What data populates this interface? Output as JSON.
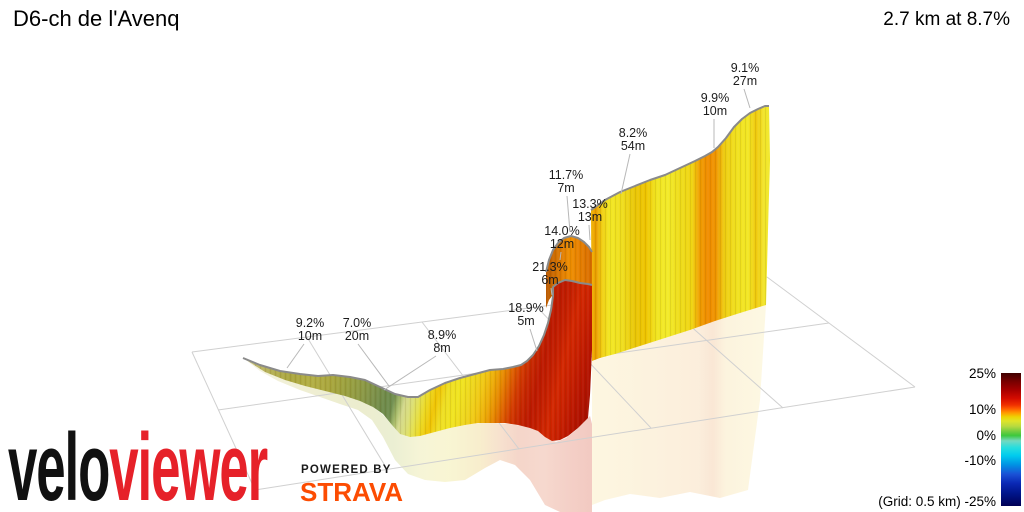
{
  "header": {
    "title": "D6-ch de l'Avenq",
    "summary": "2.7 km at 8.7%"
  },
  "chart_data": {
    "type": "3d-elevation-profile",
    "title": "D6-ch de l'Avenq",
    "climb_length_km": 2.7,
    "avg_gradient_pct": 8.7,
    "summary": "2.7 km at 8.7%",
    "segment_labels": [
      {
        "gradient": "9.2%",
        "gain": "10m"
      },
      {
        "gradient": "7.0%",
        "gain": "20m"
      },
      {
        "gradient": "8.9%",
        "gain": "8m"
      },
      {
        "gradient": "18.9%",
        "gain": "5m"
      },
      {
        "gradient": "21.3%",
        "gain": "6m"
      },
      {
        "gradient": "14.0%",
        "gain": "12m"
      },
      {
        "gradient": "13.3%",
        "gain": "13m"
      },
      {
        "gradient": "11.7%",
        "gain": "7m"
      },
      {
        "gradient": "8.2%",
        "gain": "54m"
      },
      {
        "gradient": "9.9%",
        "gain": "10m"
      },
      {
        "gradient": "9.1%",
        "gain": "27m"
      }
    ],
    "legend": {
      "ticks": [
        "25%",
        "10%",
        "0%",
        "-10%",
        "-25%"
      ],
      "grid_note": "(Grid: 0.5 km)",
      "stops": [
        {
          "p": 0,
          "c": "#3f0000"
        },
        {
          "p": 6,
          "c": "#750000"
        },
        {
          "p": 13,
          "c": "#a80000"
        },
        {
          "p": 19,
          "c": "#d30b00"
        },
        {
          "p": 24,
          "c": "#f03000"
        },
        {
          "p": 27,
          "c": "#ff6000"
        },
        {
          "p": 30,
          "c": "#ff9c00"
        },
        {
          "p": 33,
          "c": "#edd403"
        },
        {
          "p": 36,
          "c": "#e0e428"
        },
        {
          "p": 40,
          "c": "#b8da40"
        },
        {
          "p": 44,
          "c": "#72cc40"
        },
        {
          "p": 47,
          "c": "#3cc83c"
        },
        {
          "p": 51,
          "c": "#74d8c0"
        },
        {
          "p": 56,
          "c": "#28dede"
        },
        {
          "p": 62,
          "c": "#00ccee"
        },
        {
          "p": 69,
          "c": "#0092e4"
        },
        {
          "p": 76,
          "c": "#1a52d6"
        },
        {
          "p": 83,
          "c": "#0a28b4"
        },
        {
          "p": 91,
          "c": "#001488"
        },
        {
          "p": 100,
          "c": "#000055"
        }
      ]
    }
  },
  "watermark": {
    "velo": "velo",
    "viewer": "viewer",
    "powered_by": "POWERED BY",
    "strava": "STRAVA",
    "velo_color": "#111111",
    "viewer_color": "#e62129",
    "strava_color": "#fc4c02"
  }
}
